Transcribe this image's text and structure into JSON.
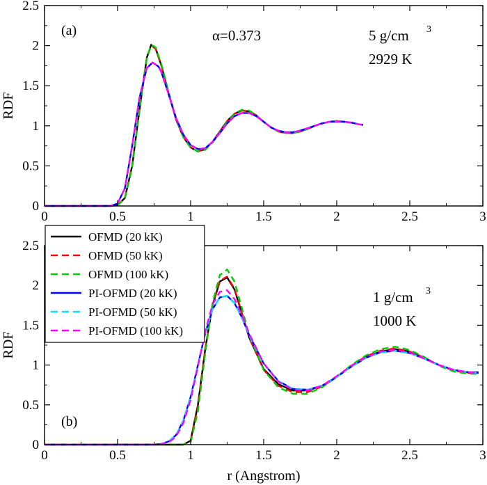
{
  "colors": {
    "ofmd_20": "#000000",
    "ofmd_50": "#ff0000",
    "ofmd_100": "#00cc00",
    "pi_20": "#0000ff",
    "pi_50": "#00e5ff",
    "pi_100": "#ff00ff"
  },
  "chart_data": [
    {
      "type": "line",
      "panel_label": "(a)",
      "ylabel": "RDF",
      "xlabel": "",
      "xlim": [
        0,
        3
      ],
      "ylim": [
        0,
        2.5
      ],
      "xticks": [
        "0",
        "0.5",
        "1",
        "1.5",
        "2",
        "2.5",
        "3"
      ],
      "yticks": [
        "0",
        "0.5",
        "1",
        "1.5",
        "2",
        "2.5"
      ],
      "annotations": {
        "alpha": "α=0.373",
        "density": "5 g/cm",
        "density_sup": "3",
        "temperature": "2929 K"
      },
      "series": [
        {
          "key": "ofmd_20",
          "style": "solid",
          "x": [
            0,
            0.45,
            0.5,
            0.55,
            0.6,
            0.65,
            0.7,
            0.73,
            0.76,
            0.8,
            0.85,
            0.9,
            0.95,
            1.0,
            1.05,
            1.1,
            1.15,
            1.2,
            1.25,
            1.3,
            1.35,
            1.4,
            1.45,
            1.5,
            1.55,
            1.6,
            1.65,
            1.7,
            1.75,
            1.8,
            1.85,
            1.9,
            1.95,
            2.0,
            2.05,
            2.1,
            2.15,
            2.18
          ],
          "y": [
            0,
            0,
            0.01,
            0.1,
            0.5,
            1.2,
            1.85,
            2.01,
            1.97,
            1.75,
            1.4,
            1.08,
            0.86,
            0.73,
            0.68,
            0.71,
            0.8,
            0.93,
            1.06,
            1.15,
            1.19,
            1.18,
            1.13,
            1.05,
            0.98,
            0.93,
            0.91,
            0.91,
            0.93,
            0.96,
            1.0,
            1.03,
            1.05,
            1.06,
            1.05,
            1.04,
            1.02,
            1.01
          ]
        },
        {
          "key": "ofmd_50",
          "style": "dashed",
          "x": [
            0,
            0.45,
            0.5,
            0.55,
            0.6,
            0.65,
            0.7,
            0.73,
            0.76,
            0.8,
            0.85,
            0.9,
            0.95,
            1.0,
            1.05,
            1.1,
            1.15,
            1.2,
            1.25,
            1.3,
            1.35,
            1.4,
            1.45,
            1.5,
            1.55,
            1.6,
            1.65,
            1.7,
            1.75,
            1.8,
            1.85,
            1.9,
            1.95,
            2.0,
            2.05,
            2.1,
            2.15,
            2.18
          ],
          "y": [
            0,
            0,
            0.01,
            0.1,
            0.5,
            1.2,
            1.85,
            2.0,
            1.96,
            1.75,
            1.4,
            1.08,
            0.86,
            0.73,
            0.68,
            0.71,
            0.8,
            0.93,
            1.06,
            1.15,
            1.19,
            1.18,
            1.13,
            1.05,
            0.98,
            0.93,
            0.91,
            0.91,
            0.93,
            0.96,
            1.0,
            1.03,
            1.05,
            1.06,
            1.05,
            1.04,
            1.02,
            1.01
          ]
        },
        {
          "key": "ofmd_100",
          "style": "dashed",
          "x": [
            0,
            0.45,
            0.5,
            0.55,
            0.6,
            0.65,
            0.7,
            0.73,
            0.76,
            0.8,
            0.85,
            0.9,
            0.95,
            1.0,
            1.05,
            1.1,
            1.15,
            1.2,
            1.25,
            1.3,
            1.35,
            1.4,
            1.45,
            1.5,
            1.55,
            1.6,
            1.65,
            1.7,
            1.75,
            1.8,
            1.85,
            1.9,
            1.95,
            2.0,
            2.05,
            2.1,
            2.15,
            2.18
          ],
          "y": [
            0,
            0,
            0.01,
            0.09,
            0.48,
            1.18,
            1.84,
            2.01,
            1.98,
            1.77,
            1.42,
            1.09,
            0.86,
            0.73,
            0.68,
            0.7,
            0.79,
            0.92,
            1.05,
            1.15,
            1.2,
            1.19,
            1.13,
            1.05,
            0.98,
            0.93,
            0.91,
            0.91,
            0.93,
            0.96,
            1.0,
            1.03,
            1.05,
            1.06,
            1.05,
            1.04,
            1.02,
            1.01
          ]
        },
        {
          "key": "pi_20",
          "style": "solid",
          "x": [
            0,
            0.45,
            0.5,
            0.55,
            0.6,
            0.65,
            0.7,
            0.74,
            0.78,
            0.8,
            0.85,
            0.9,
            0.95,
            1.0,
            1.05,
            1.1,
            1.15,
            1.2,
            1.25,
            1.3,
            1.35,
            1.4,
            1.45,
            1.5,
            1.55,
            1.6,
            1.65,
            1.7,
            1.75,
            1.8,
            1.85,
            1.9,
            1.95,
            2.0,
            2.05,
            2.1,
            2.15,
            2.18
          ],
          "y": [
            0,
            0,
            0.03,
            0.22,
            0.75,
            1.35,
            1.72,
            1.79,
            1.74,
            1.67,
            1.39,
            1.1,
            0.89,
            0.76,
            0.71,
            0.72,
            0.8,
            0.91,
            1.03,
            1.12,
            1.16,
            1.16,
            1.12,
            1.05,
            0.98,
            0.94,
            0.92,
            0.92,
            0.94,
            0.97,
            1.0,
            1.03,
            1.05,
            1.05,
            1.05,
            1.04,
            1.02,
            1.01
          ]
        },
        {
          "key": "pi_50",
          "style": "dashed",
          "x": [
            0,
            0.45,
            0.5,
            0.55,
            0.6,
            0.65,
            0.7,
            0.74,
            0.78,
            0.8,
            0.85,
            0.9,
            0.95,
            1.0,
            1.05,
            1.1,
            1.15,
            1.2,
            1.25,
            1.3,
            1.35,
            1.4,
            1.45,
            1.5,
            1.55,
            1.6,
            1.65,
            1.7,
            1.75,
            1.8,
            1.85,
            1.9,
            1.95,
            2.0,
            2.05,
            2.1,
            2.15,
            2.18
          ],
          "y": [
            0,
            0,
            0.03,
            0.22,
            0.75,
            1.35,
            1.72,
            1.79,
            1.74,
            1.67,
            1.39,
            1.1,
            0.89,
            0.76,
            0.71,
            0.72,
            0.8,
            0.91,
            1.03,
            1.12,
            1.16,
            1.16,
            1.12,
            1.05,
            0.98,
            0.94,
            0.92,
            0.92,
            0.94,
            0.97,
            1.0,
            1.03,
            1.05,
            1.05,
            1.05,
            1.04,
            1.02,
            1.01
          ]
        },
        {
          "key": "pi_100",
          "style": "dashed",
          "x": [
            0,
            0.45,
            0.5,
            0.55,
            0.6,
            0.65,
            0.7,
            0.74,
            0.78,
            0.8,
            0.85,
            0.9,
            0.95,
            1.0,
            1.05,
            1.1,
            1.15,
            1.2,
            1.25,
            1.3,
            1.35,
            1.4,
            1.45,
            1.5,
            1.55,
            1.6,
            1.65,
            1.7,
            1.75,
            1.8,
            1.85,
            1.9,
            1.95,
            2.0,
            2.05,
            2.1,
            2.15,
            2.18
          ],
          "y": [
            0,
            0,
            0.03,
            0.22,
            0.75,
            1.35,
            1.72,
            1.79,
            1.74,
            1.67,
            1.39,
            1.1,
            0.89,
            0.76,
            0.71,
            0.72,
            0.8,
            0.91,
            1.03,
            1.12,
            1.16,
            1.16,
            1.12,
            1.05,
            0.98,
            0.94,
            0.92,
            0.92,
            0.94,
            0.97,
            1.0,
            1.03,
            1.05,
            1.05,
            1.05,
            1.04,
            1.02,
            1.01
          ]
        }
      ]
    },
    {
      "type": "line",
      "panel_label": "(b)",
      "ylabel": "RDF",
      "xlabel": "r (Angstrom)",
      "xlim": [
        0,
        3
      ],
      "ylim": [
        0,
        2.5
      ],
      "xticks": [
        "0",
        "0.5",
        "1",
        "1.5",
        "2",
        "2.5",
        "3"
      ],
      "yticks": [
        "0",
        "0.5",
        "1",
        "1.5",
        "2",
        "2.5"
      ],
      "annotations": {
        "density": "1 g/cm",
        "density_sup": "3",
        "temperature": "1000 K"
      },
      "legend": {
        "placement": "top-left",
        "entries": [
          {
            "key": "ofmd_20",
            "label": "OFMD (20 kK)",
            "style": "solid"
          },
          {
            "key": "ofmd_50",
            "label": "OFMD (50 kK)",
            "style": "dashed"
          },
          {
            "key": "ofmd_100",
            "label": "OFMD (100 kK)",
            "style": "dashed"
          },
          {
            "key": "pi_20",
            "label": "PI-OFMD (20 kK)",
            "style": "solid"
          },
          {
            "key": "pi_50",
            "label": "PI-OFMD (50 kK)",
            "style": "dashed"
          },
          {
            "key": "pi_100",
            "label": "PI-OFMD (100 kK)",
            "style": "dashed"
          }
        ]
      },
      "series": [
        {
          "key": "ofmd_20",
          "label": "OFMD (20 kK)",
          "style": "solid",
          "x": [
            0,
            0.9,
            0.95,
            1.0,
            1.05,
            1.1,
            1.15,
            1.2,
            1.25,
            1.3,
            1.35,
            1.4,
            1.5,
            1.6,
            1.7,
            1.8,
            1.9,
            2.0,
            2.1,
            2.2,
            2.3,
            2.4,
            2.5,
            2.6,
            2.7,
            2.8,
            2.9,
            2.97
          ],
          "y": [
            0,
            0,
            0.0,
            0.05,
            0.5,
            1.2,
            1.75,
            2.05,
            2.1,
            1.95,
            1.65,
            1.35,
            0.95,
            0.76,
            0.68,
            0.68,
            0.74,
            0.85,
            0.99,
            1.1,
            1.17,
            1.2,
            1.17,
            1.09,
            1.0,
            0.94,
            0.91,
            0.91
          ]
        },
        {
          "key": "ofmd_50",
          "label": "OFMD (50 kK)",
          "style": "dashed",
          "x": [
            0,
            0.9,
            0.95,
            1.0,
            1.05,
            1.1,
            1.15,
            1.2,
            1.25,
            1.3,
            1.35,
            1.4,
            1.5,
            1.6,
            1.7,
            1.8,
            1.9,
            2.0,
            2.1,
            2.2,
            2.3,
            2.4,
            2.5,
            2.6,
            2.7,
            2.8,
            2.9,
            2.97
          ],
          "y": [
            0,
            0,
            0.0,
            0.05,
            0.48,
            1.2,
            1.76,
            2.06,
            2.11,
            1.96,
            1.66,
            1.35,
            0.94,
            0.74,
            0.66,
            0.66,
            0.73,
            0.85,
            0.99,
            1.11,
            1.18,
            1.21,
            1.17,
            1.09,
            1.0,
            0.93,
            0.9,
            0.9
          ]
        },
        {
          "key": "ofmd_100",
          "label": "OFMD (100 kK)",
          "style": "dashed",
          "x": [
            0,
            0.9,
            0.95,
            1.0,
            1.05,
            1.1,
            1.15,
            1.2,
            1.25,
            1.3,
            1.35,
            1.4,
            1.5,
            1.6,
            1.7,
            1.8,
            1.9,
            2.0,
            2.1,
            2.2,
            2.3,
            2.4,
            2.5,
            2.6,
            2.7,
            2.8,
            2.9,
            2.97
          ],
          "y": [
            0,
            0,
            0.0,
            0.03,
            0.42,
            1.15,
            1.78,
            2.13,
            2.2,
            2.05,
            1.72,
            1.38,
            0.94,
            0.72,
            0.64,
            0.64,
            0.72,
            0.85,
            1.0,
            1.12,
            1.2,
            1.23,
            1.19,
            1.1,
            0.99,
            0.92,
            0.89,
            0.89
          ]
        },
        {
          "key": "pi_20",
          "label": "PI-OFMD (20 kK)",
          "style": "solid",
          "x": [
            0,
            0.75,
            0.8,
            0.85,
            0.9,
            0.95,
            1.0,
            1.05,
            1.1,
            1.15,
            1.2,
            1.25,
            1.3,
            1.35,
            1.4,
            1.5,
            1.6,
            1.7,
            1.8,
            1.9,
            2.0,
            2.1,
            2.2,
            2.3,
            2.4,
            2.5,
            2.6,
            2.7,
            2.8,
            2.9,
            2.97
          ],
          "y": [
            0,
            0,
            0.01,
            0.04,
            0.12,
            0.3,
            0.6,
            1.0,
            1.4,
            1.7,
            1.85,
            1.87,
            1.78,
            1.6,
            1.38,
            1.02,
            0.8,
            0.7,
            0.69,
            0.74,
            0.85,
            0.98,
            1.09,
            1.16,
            1.18,
            1.15,
            1.08,
            1.0,
            0.94,
            0.91,
            0.9
          ]
        },
        {
          "key": "pi_50",
          "label": "PI-OFMD (50 kK)",
          "style": "dashed",
          "x": [
            0,
            0.75,
            0.8,
            0.85,
            0.9,
            0.95,
            1.0,
            1.05,
            1.1,
            1.15,
            1.2,
            1.25,
            1.3,
            1.35,
            1.4,
            1.5,
            1.6,
            1.7,
            1.8,
            1.9,
            2.0,
            2.1,
            2.2,
            2.3,
            2.4,
            2.5,
            2.6,
            2.7,
            2.8,
            2.9,
            2.97
          ],
          "y": [
            0,
            0,
            0.01,
            0.04,
            0.12,
            0.3,
            0.6,
            1.0,
            1.4,
            1.7,
            1.85,
            1.87,
            1.78,
            1.6,
            1.38,
            1.02,
            0.8,
            0.7,
            0.69,
            0.74,
            0.85,
            0.98,
            1.09,
            1.16,
            1.18,
            1.15,
            1.08,
            1.0,
            0.94,
            0.91,
            0.9
          ]
        },
        {
          "key": "pi_100",
          "label": "PI-OFMD (100 kK)",
          "style": "dashed",
          "x": [
            0,
            0.75,
            0.8,
            0.85,
            0.9,
            0.95,
            1.0,
            1.05,
            1.1,
            1.15,
            1.2,
            1.25,
            1.3,
            1.35,
            1.4,
            1.5,
            1.6,
            1.7,
            1.8,
            1.9,
            2.0,
            2.1,
            2.2,
            2.3,
            2.4,
            2.5,
            2.6,
            2.7,
            2.8,
            2.9,
            2.97
          ],
          "y": [
            0,
            0,
            0.01,
            0.03,
            0.1,
            0.27,
            0.56,
            0.98,
            1.42,
            1.76,
            1.92,
            1.94,
            1.83,
            1.63,
            1.4,
            1.02,
            0.79,
            0.69,
            0.68,
            0.74,
            0.86,
            0.99,
            1.1,
            1.17,
            1.19,
            1.16,
            1.08,
            1.0,
            0.94,
            0.91,
            0.9
          ]
        }
      ]
    }
  ]
}
